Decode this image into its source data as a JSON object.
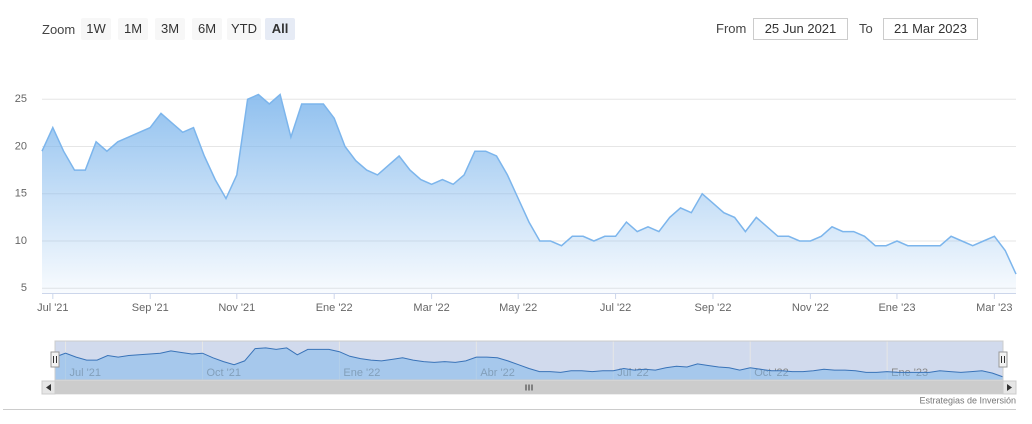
{
  "range_selector": {
    "label": "Zoom",
    "buttons": [
      "1W",
      "1M",
      "3M",
      "6M",
      "YTD",
      "All"
    ]
  },
  "date_inputs": {
    "from_label": "From",
    "from": "25 Jun 2021",
    "to_label": "To",
    "to": "21 Mar 2023"
  },
  "credits": "Estrategias de Inversión",
  "chart_data": {
    "type": "area",
    "color": "#7cb5ec",
    "categories": [
      null,
      "Jul '21",
      null,
      null,
      null,
      null,
      null,
      null,
      null,
      null,
      "Sep '21",
      null,
      null,
      null,
      null,
      null,
      null,
      null,
      "Nov '21",
      null,
      null,
      null,
      null,
      null,
      null,
      null,
      null,
      "Ene '22",
      null,
      null,
      null,
      null,
      null,
      null,
      null,
      null,
      "Mar '22",
      null,
      null,
      null,
      null,
      null,
      null,
      null,
      "May '22",
      null,
      null,
      null,
      null,
      null,
      null,
      null,
      null,
      "Jul '22",
      null,
      null,
      null,
      null,
      null,
      null,
      null,
      null,
      "Sep '22",
      null,
      null,
      null,
      null,
      null,
      null,
      null,
      null,
      "Nov '22",
      null,
      null,
      null,
      null,
      null,
      null,
      null,
      "Ene '23",
      null,
      null,
      null,
      null,
      null,
      null,
      null,
      null,
      "Mar '23",
      null,
      null
    ],
    "values": [
      19.5,
      22,
      19.5,
      17.5,
      17.5,
      20.5,
      19.5,
      20.5,
      21,
      21.5,
      22,
      23.5,
      22.5,
      21.5,
      22,
      19,
      16.5,
      14.5,
      17,
      25,
      25.5,
      24.5,
      25.5,
      21,
      24.5,
      24.5,
      24.5,
      23,
      20,
      18.5,
      17.5,
      17,
      18,
      19,
      17.5,
      16.5,
      16,
      16.5,
      16,
      17,
      19.5,
      19.5,
      19,
      17,
      14.5,
      12,
      10,
      10,
      9.5,
      10.5,
      10.5,
      10,
      10.5,
      10.5,
      12,
      11,
      11.5,
      11,
      12.5,
      13.5,
      13,
      15,
      14,
      13,
      12.5,
      11,
      12.5,
      11.5,
      10.5,
      10.5,
      10,
      10,
      10.5,
      11.5,
      11,
      11,
      10.5,
      9.5,
      9.5,
      10,
      9.5,
      9.5,
      9.5,
      9.5,
      10.5,
      10,
      9.5,
      10,
      10.5,
      9,
      6.5
    ],
    "ylim": [
      4.5,
      30
    ],
    "yticks": [
      5,
      10,
      15,
      20,
      25
    ],
    "grid": true,
    "navigator": {
      "categories": [
        null,
        "Jul '21",
        null,
        null,
        null,
        null,
        null,
        null,
        null,
        null,
        null,
        null,
        null,
        null,
        "Oct '21",
        null,
        null,
        null,
        null,
        null,
        null,
        null,
        null,
        null,
        null,
        null,
        null,
        "Ene '22",
        null,
        null,
        null,
        null,
        null,
        null,
        null,
        null,
        null,
        null,
        null,
        null,
        "Abr '22",
        null,
        null,
        null,
        null,
        null,
        null,
        null,
        null,
        null,
        null,
        null,
        null,
        "Jul '22",
        null,
        null,
        null,
        null,
        null,
        null,
        null,
        null,
        null,
        null,
        null,
        null,
        "Oct '22",
        null,
        null,
        null,
        null,
        null,
        null,
        null,
        null,
        null,
        null,
        null,
        null,
        "Ene '23",
        null,
        null,
        null,
        null,
        null,
        null,
        null,
        null,
        null,
        null,
        null
      ]
    }
  }
}
